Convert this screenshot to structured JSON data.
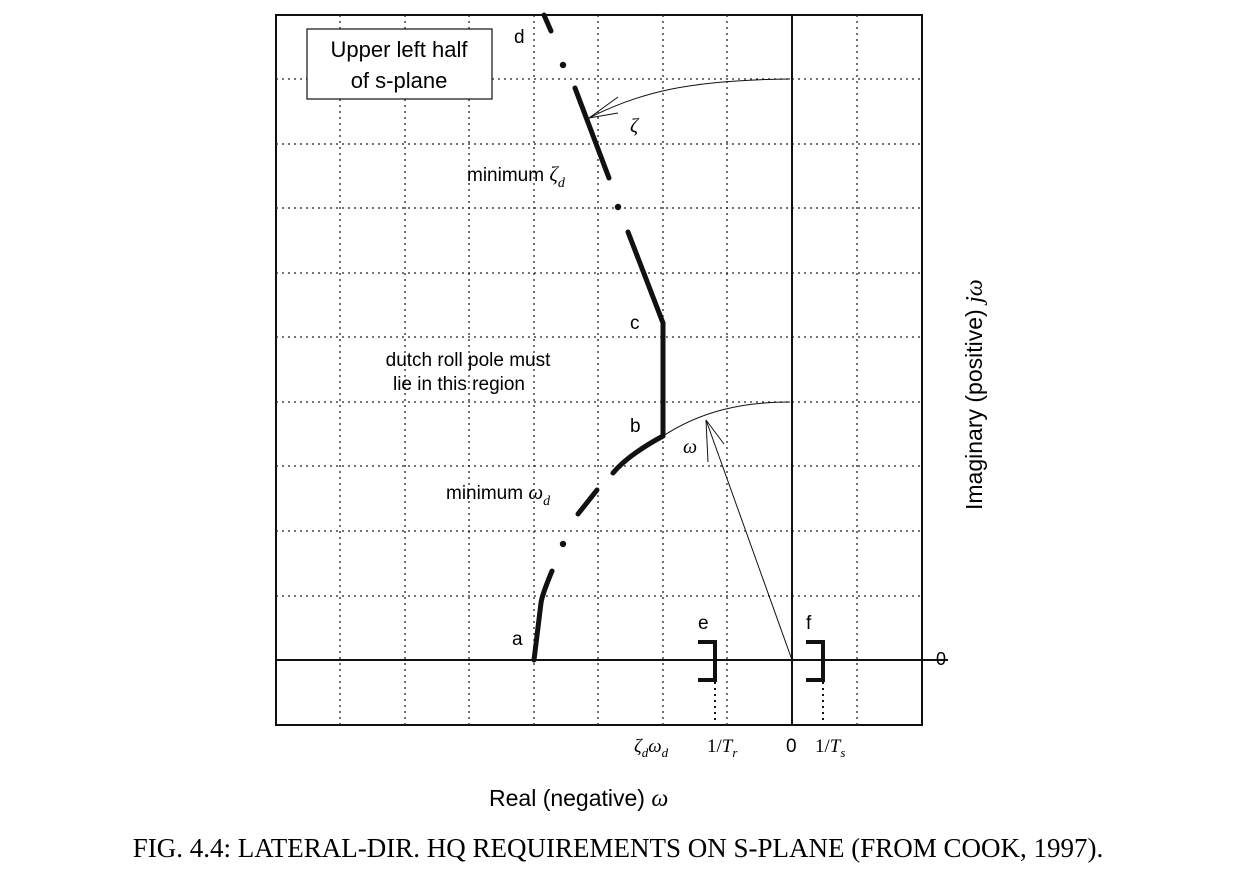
{
  "figure": {
    "caption": "FIG. 4.4: LATERAL-DIR. HQ REQUIREMENTS ON S-PLANE (FROM COOK, 1997).",
    "box_label": [
      "Upper left half",
      "of s-plane"
    ],
    "region_label": [
      "dutch roll pole must",
      "lie in this region"
    ],
    "min_zeta": {
      "text": "minimum ",
      "sym": "ζ",
      "sub": "d"
    },
    "min_omega": {
      "text": "minimum ",
      "sym": "ω",
      "sub": "d"
    },
    "points": {
      "a": "a",
      "b": "b",
      "c": "c",
      "d": "d",
      "e": "e",
      "f": "f"
    },
    "zeta_sym": "ζ",
    "omega_sym": "ω",
    "x_axis_label": {
      "text": "Real (negative) ",
      "sym": "ω"
    },
    "y_axis_label": {
      "text": "Imaginary (positive) ",
      "sym": "jω"
    },
    "zero_right": "0",
    "ticks": {
      "zeta_omega": {
        "z": "ζ",
        "zs": "d",
        "w": "ω",
        "ws": "d"
      },
      "inv_tr": {
        "pre": "1/",
        "T": "T",
        "sub": "r"
      },
      "zero": "0",
      "inv_ts": {
        "pre": "1/",
        "T": "T",
        "sub": "s"
      }
    }
  }
}
